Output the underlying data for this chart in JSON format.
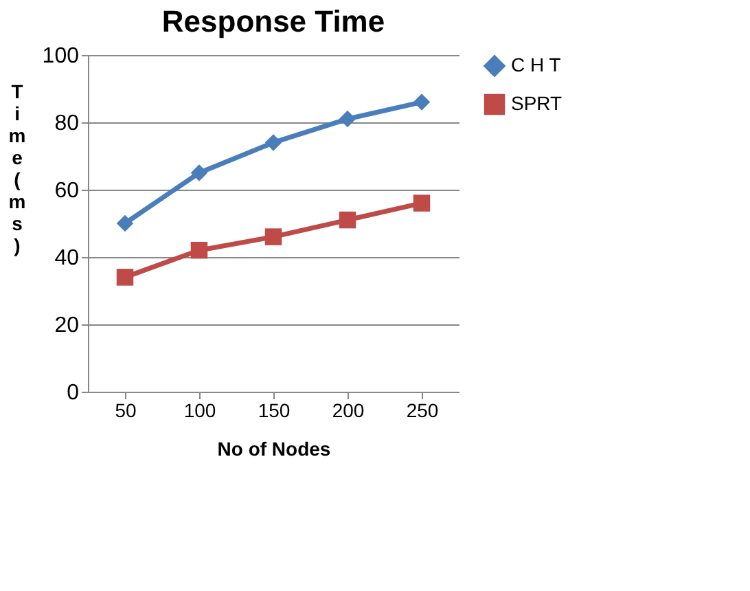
{
  "chart_data": {
    "type": "line",
    "title": "Response Time",
    "xlabel": "No of Nodes",
    "ylabel": "Time (ms)",
    "categories": [
      "50",
      "100",
      "150",
      "200",
      "250"
    ],
    "series": [
      {
        "name": "C H T",
        "color": "#4a7ebb",
        "marker": "diamond",
        "values": [
          50,
          65,
          74,
          81,
          86
        ]
      },
      {
        "name": "SPRT",
        "color": "#be4b48",
        "marker": "square",
        "values": [
          34,
          42,
          46,
          51,
          56
        ]
      }
    ],
    "ylim": [
      0,
      100
    ],
    "yticks": [
      0,
      20,
      40,
      60,
      80,
      100
    ],
    "grid": "y",
    "legend": "right",
    "line_style": "solid"
  }
}
